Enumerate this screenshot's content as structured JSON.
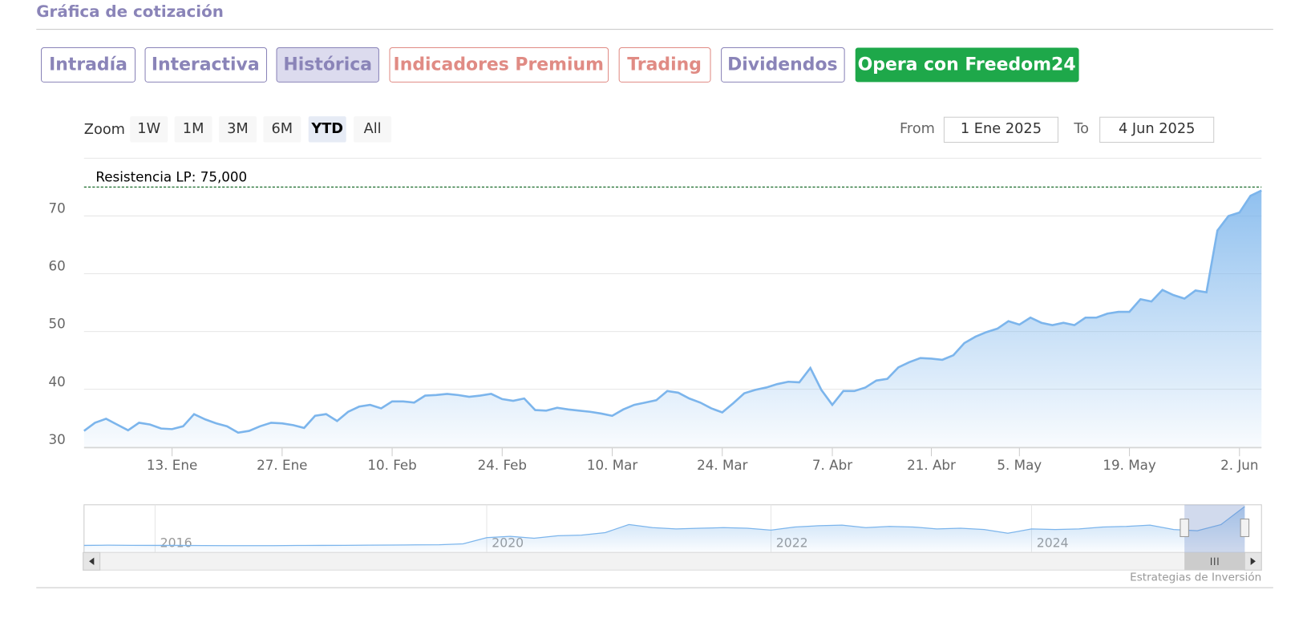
{
  "header": {
    "title": "Gráfica de cotización"
  },
  "tabs": [
    "Intradía",
    "Interactiva",
    "Histórica",
    "Indicadores Premium",
    "Trading",
    "Dividendos",
    "Opera con Freedom24"
  ],
  "zoom": {
    "label": "Zoom",
    "buttons": [
      "1W",
      "1M",
      "3M",
      "6M",
      "YTD",
      "All"
    ],
    "active": "YTD"
  },
  "range": {
    "from_label": "From",
    "from": "1 Ene 2025",
    "to_label": "To",
    "to": "4 Jun 2025"
  },
  "credits": "Estrategias de Inversión",
  "chart_data": [
    {
      "type": "area",
      "color": "#7cb5ec",
      "grid": true,
      "ylim": [
        30,
        80
      ],
      "yticks": [
        30,
        40,
        50,
        60,
        70
      ],
      "annotation": {
        "text": "Resistencia LP: 75,000",
        "value": 75,
        "color": "#1a6b2a"
      },
      "categories": [
        null,
        null,
        null,
        null,
        null,
        null,
        null,
        null,
        "13. Ene",
        null,
        null,
        null,
        null,
        null,
        null,
        null,
        null,
        null,
        "27. Ene",
        null,
        null,
        null,
        null,
        null,
        null,
        null,
        null,
        null,
        "10. Feb",
        null,
        null,
        null,
        null,
        null,
        null,
        null,
        null,
        null,
        "24. Feb",
        null,
        null,
        null,
        null,
        null,
        null,
        null,
        null,
        null,
        "10. Mar",
        null,
        null,
        null,
        null,
        null,
        null,
        null,
        null,
        null,
        "24. Mar",
        null,
        null,
        null,
        null,
        null,
        null,
        null,
        null,
        null,
        "7. Abr",
        null,
        null,
        null,
        null,
        null,
        null,
        null,
        null,
        "21. Abr",
        null,
        null,
        null,
        null,
        null,
        null,
        null,
        "5. May",
        null,
        null,
        null,
        null,
        null,
        null,
        null,
        null,
        null,
        "19. May",
        null,
        null,
        null,
        null,
        null,
        null,
        null,
        null,
        null,
        "2. Jun",
        null,
        null
      ],
      "values": [
        32.8,
        34.2,
        34.9,
        33.9,
        32.9,
        34.2,
        33.9,
        33.2,
        33.1,
        33.6,
        35.7,
        34.8,
        34.1,
        33.6,
        32.5,
        32.8,
        33.6,
        34.2,
        34.1,
        33.8,
        33.3,
        35.4,
        35.7,
        34.5,
        36.1,
        37.0,
        37.3,
        36.7,
        37.9,
        37.9,
        37.7,
        38.9,
        39.0,
        39.2,
        39.0,
        38.7,
        38.9,
        39.2,
        38.3,
        38.0,
        38.4,
        36.4,
        36.3,
        36.8,
        36.5,
        36.3,
        36.1,
        35.8,
        35.4,
        36.5,
        37.3,
        37.7,
        38.1,
        39.7,
        39.4,
        38.4,
        37.7,
        36.7,
        36.0,
        37.6,
        39.3,
        39.9,
        40.3,
        40.9,
        41.3,
        41.2,
        43.7,
        39.9,
        37.3,
        39.7,
        39.7,
        40.3,
        41.5,
        41.8,
        43.8,
        44.7,
        45.4,
        45.3,
        45.1,
        45.9,
        48.0,
        49.1,
        49.9,
        50.5,
        51.8,
        51.2,
        52.4,
        51.5,
        51.1,
        51.5,
        51.1,
        52.4,
        52.4,
        53.1,
        53.4,
        53.4,
        55.6,
        55.2,
        57.2,
        56.3,
        55.7,
        57.1,
        56.8,
        67.5,
        70.0,
        70.6,
        73.5,
        74.4
      ]
    },
    {
      "type": "area",
      "color": "#7cb5ec",
      "categories": [
        null,
        null,
        null,
        "2016",
        null,
        null,
        null,
        null,
        null,
        null,
        null,
        null,
        null,
        null,
        null,
        null,
        null,
        "2020",
        null,
        null,
        null,
        null,
        null,
        null,
        null,
        null,
        null,
        null,
        null,
        "2022",
        null,
        null,
        null,
        null,
        null,
        null,
        null,
        null,
        null,
        null,
        "2024",
        null,
        null,
        null,
        null,
        null,
        null,
        null,
        null,
        null
      ],
      "values": [
        11.5,
        11.8,
        11.6,
        11.5,
        11.4,
        11.2,
        11.0,
        11.0,
        11.1,
        11.3,
        11.5,
        11.6,
        11.8,
        12.0,
        12.2,
        12.5,
        14,
        24,
        26,
        23,
        27,
        28,
        32,
        45,
        40,
        38,
        39,
        40,
        39,
        36,
        41,
        43,
        44,
        40,
        42,
        41,
        38,
        39,
        37,
        31,
        38,
        37,
        38,
        41,
        42,
        44,
        37,
        35,
        45,
        74
      ]
    }
  ]
}
